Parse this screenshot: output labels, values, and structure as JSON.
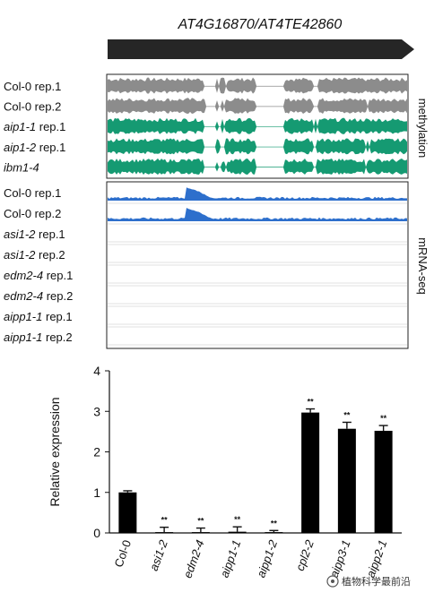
{
  "gene_title": "AT4G16870/AT4TE42860",
  "methylation": {
    "side_label": "methylation",
    "tracks": [
      {
        "label": "Col-0 rep.1",
        "italic_part": "",
        "color": "#8c8c8c"
      },
      {
        "label": "Col-0 rep.2",
        "italic_part": "",
        "color": "#8c8c8c"
      },
      {
        "label": "aip1-1 rep.1",
        "italic_part": "aip1-1",
        "color": "#159a72"
      },
      {
        "label": "aip1-2 rep.1",
        "italic_part": "aip1-2",
        "color": "#159a72"
      },
      {
        "label": "ibm1-4",
        "italic_part": "ibm1-4",
        "color": "#159a72"
      }
    ]
  },
  "mrna": {
    "side_label": "mRNA-seq",
    "color": "#2d6fcc",
    "tracks": [
      {
        "label": "Col-0 rep.1",
        "italic_part": ""
      },
      {
        "label": "Col-0 rep.2",
        "italic_part": ""
      },
      {
        "label": "asi1-2 rep.1",
        "italic_part": "asi1-2"
      },
      {
        "label": "asi1-2 rep.2",
        "italic_part": "asi1-2"
      },
      {
        "label": "edm2-4 rep.1",
        "italic_part": "edm2-4"
      },
      {
        "label": "edm2-4 rep.2",
        "italic_part": "edm2-4"
      },
      {
        "label": "aipp1-1 rep.1",
        "italic_part": "aipp1-1"
      },
      {
        "label": "aipp1-1 rep.2",
        "italic_part": "aipp1-1"
      }
    ]
  },
  "chart_data": {
    "type": "bar",
    "ylabel": "Relative expression",
    "ylim": [
      0,
      4
    ],
    "yticks": [
      "0",
      "1",
      "2",
      "3",
      "4"
    ],
    "categories": [
      "Col-0",
      "asi1-2",
      "edm2-4",
      "aipp1-1",
      "aipp1-2",
      "cpl2-2",
      "aipp3-1",
      "aipp2-1"
    ],
    "italic": [
      false,
      true,
      true,
      true,
      true,
      true,
      true,
      true
    ],
    "values": [
      1.0,
      0.02,
      0.02,
      0.03,
      0.02,
      2.97,
      2.57,
      2.52
    ],
    "errors": [
      0.04,
      0.12,
      0.1,
      0.12,
      0.04,
      0.09,
      0.16,
      0.13
    ],
    "significance": [
      "",
      "**",
      "**",
      "**",
      "**",
      "**",
      "**",
      "**"
    ],
    "bar_color": "#000000",
    "grid": false
  },
  "watermark": "植物科学最前沿"
}
